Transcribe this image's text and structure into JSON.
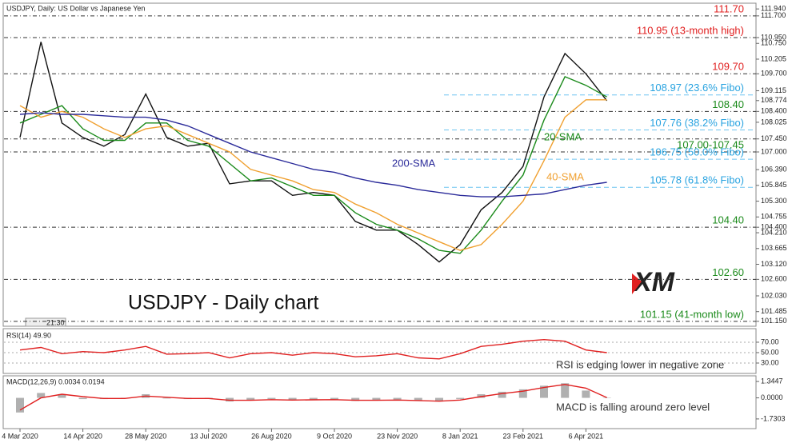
{
  "header": "USDJPY, Daily:  US Dollar vs Japanese Yen",
  "logo": "XM",
  "time_label": "21:30",
  "chart_data": [
    {
      "type": "line",
      "title": "USDJPY - Daily chart",
      "categories": [
        "4 Mar 2020",
        null,
        null,
        "14 Apr 2020",
        null,
        null,
        "28 May 2020",
        null,
        null,
        "13 Jul 2020",
        null,
        null,
        "26 Aug 2020",
        null,
        null,
        "9 Oct 2020",
        null,
        null,
        "23 Nov 2020",
        null,
        null,
        "8 Jan 2021",
        null,
        null,
        "23 Feb 2021",
        null,
        null,
        "6 Apr 2021",
        null
      ],
      "series": [
        {
          "color": "#111111",
          "values": [
            107.5,
            110.8,
            108.0,
            107.5,
            107.2,
            107.6,
            109.0,
            107.5,
            107.2,
            107.3,
            105.9,
            106.0,
            106.0,
            105.5,
            105.6,
            105.5,
            104.6,
            104.3,
            104.3,
            103.8,
            103.2,
            103.8,
            105.0,
            105.6,
            106.5,
            108.9,
            110.4,
            109.7,
            108.77
          ]
        },
        {
          "name": "20-SMA",
          "color": "#1a8a1a",
          "values": [
            108.0,
            108.3,
            108.6,
            107.8,
            107.4,
            107.4,
            108.0,
            108.0,
            107.4,
            107.2,
            106.6,
            106.0,
            106.1,
            105.8,
            105.5,
            105.5,
            104.9,
            104.5,
            104.3,
            104.0,
            103.6,
            103.5,
            104.3,
            105.3,
            106.2,
            108.1,
            109.6,
            109.3,
            108.9
          ]
        },
        {
          "name": "40-SMA",
          "color": "#f0a030",
          "values": [
            108.6,
            108.2,
            108.4,
            108.2,
            107.8,
            107.5,
            107.8,
            107.9,
            107.6,
            107.3,
            107.0,
            106.4,
            106.2,
            106.0,
            105.7,
            105.6,
            105.2,
            104.9,
            104.5,
            104.2,
            103.9,
            103.6,
            103.8,
            104.5,
            105.3,
            106.7,
            108.2,
            108.8,
            108.8
          ]
        },
        {
          "name": "200-SMA",
          "color": "#2b2b9a",
          "values": [
            108.3,
            108.35,
            108.3,
            108.3,
            108.25,
            108.2,
            108.2,
            108.1,
            107.9,
            107.6,
            107.3,
            107.0,
            106.8,
            106.6,
            106.4,
            106.3,
            106.1,
            105.95,
            105.85,
            105.7,
            105.6,
            105.5,
            105.45,
            105.45,
            105.5,
            105.55,
            105.7,
            105.85,
            105.95
          ]
        }
      ],
      "ylim": [
        100.98,
        112.11
      ],
      "yticks": [
        {
          "value": 111.94,
          "label": "111.940"
        },
        {
          "value": 111.7,
          "label": "111.700"
        },
        {
          "value": 110.95,
          "label": "110.950"
        },
        {
          "value": 110.75,
          "label": "110.750"
        },
        {
          "value": 110.205,
          "label": "110.205"
        },
        {
          "value": 109.7,
          "label": "109.700"
        },
        {
          "value": 109.115,
          "label": "109.115"
        },
        {
          "value": 108.774,
          "label": "108.774"
        },
        {
          "value": 108.4,
          "label": "108.400"
        },
        {
          "value": 108.025,
          "label": "108.025"
        },
        {
          "value": 107.45,
          "label": "107.450"
        },
        {
          "value": 107.0,
          "label": "107.000"
        },
        {
          "value": 106.39,
          "label": "106.390"
        },
        {
          "value": 105.845,
          "label": "105.845"
        },
        {
          "value": 105.3,
          "label": "105.300"
        },
        {
          "value": 104.755,
          "label": "104.755"
        },
        {
          "value": 104.4,
          "label": "104.400"
        },
        {
          "value": 104.21,
          "label": "104.210"
        },
        {
          "value": 103.665,
          "label": "103.665"
        },
        {
          "value": 103.12,
          "label": "103.120"
        },
        {
          "value": 102.6,
          "label": "102.600"
        },
        {
          "value": 102.03,
          "label": "102.030"
        },
        {
          "value": 101.485,
          "label": "101.485"
        },
        {
          "value": 101.15,
          "label": "101.150"
        }
      ],
      "annotations": [
        {
          "label": "111.70",
          "color": "#e02020",
          "levels": [
            111.7
          ]
        },
        {
          "label": "110.95 (13-month high)",
          "color": "#e02020",
          "levels": [
            110.95
          ]
        },
        {
          "label": "109.70",
          "color": "#e02020",
          "levels": [
            109.7
          ]
        },
        {
          "label": "108.97 (23.6% Fibo)",
          "color": "#29a3e0",
          "levels": [
            108.97
          ]
        },
        {
          "label": "108.40",
          "color": "#1a8a1a",
          "levels": [
            108.4
          ]
        },
        {
          "label": "107.76 (38.2% Fibo)",
          "color": "#29a3e0",
          "levels": [
            107.76
          ]
        },
        {
          "label": "107.00-107.45",
          "color": "#1a8a1a",
          "levels": [
            107.0,
            107.45
          ]
        },
        {
          "label": "106.75 (50.0% Fibo)",
          "color": "#29a3e0",
          "levels": [
            106.75
          ]
        },
        {
          "label": "105.78 (61.8% Fibo)",
          "color": "#29a3e0",
          "levels": [
            105.78
          ]
        },
        {
          "label": "104.40",
          "color": "#1a8a1a",
          "levels": [
            104.4
          ]
        },
        {
          "label": "102.60",
          "color": "#1a8a1a",
          "levels": [
            102.6
          ]
        },
        {
          "label": "101.15 (41-month low)",
          "color": "#1a8a1a",
          "levels": [
            101.15
          ]
        }
      ]
    },
    {
      "type": "line",
      "title": "RSI(14) 49.90",
      "note": "RSI is edging lower in negative zone",
      "series": [
        {
          "color": "#e02020",
          "values": [
            55,
            60,
            48,
            52,
            50,
            55,
            62,
            47,
            48,
            50,
            40,
            48,
            50,
            45,
            50,
            48,
            42,
            44,
            48,
            40,
            38,
            48,
            62,
            66,
            72,
            75,
            72,
            55,
            49.9
          ]
        }
      ],
      "ylim": [
        10,
        93
      ],
      "yticks": [
        {
          "value": 70,
          "label": "70.00"
        },
        {
          "value": 50,
          "label": "50.00"
        },
        {
          "value": 30,
          "label": "30.00"
        }
      ],
      "grid": true
    },
    {
      "type": "combo",
      "title": "MACD(12,26,9) 0.0034 0.0194",
      "note": "MACD is falling around zero level",
      "series": [
        {
          "type": "bar",
          "color": "#b0b0b0",
          "values": [
            -1.2,
            0.4,
            0.3,
            -0.1,
            -0.1,
            0,
            0.3,
            -0.05,
            -0.1,
            -0.05,
            -0.3,
            -0.2,
            -0.1,
            -0.2,
            -0.15,
            -0.15,
            -0.25,
            -0.2,
            -0.15,
            -0.25,
            -0.3,
            -0.1,
            0.3,
            0.5,
            0.7,
            1.0,
            1.2,
            0.6,
            0.0034
          ]
        },
        {
          "type": "line",
          "color": "#e02020",
          "values": [
            -1.0,
            0.0,
            0.3,
            0.1,
            -0.05,
            -0.05,
            0.15,
            0.05,
            -0.05,
            -0.05,
            -0.2,
            -0.2,
            -0.15,
            -0.18,
            -0.16,
            -0.15,
            -0.2,
            -0.2,
            -0.18,
            -0.22,
            -0.27,
            -0.18,
            0.1,
            0.35,
            0.55,
            0.85,
            1.1,
            0.8,
            0.0194
          ]
        }
      ],
      "ylim": [
        -2.46,
        1.81
      ],
      "yticks": [
        1.3447,
        {
          "value": 0,
          "label": "0.0000"
        },
        -1.7303
      ]
    }
  ]
}
